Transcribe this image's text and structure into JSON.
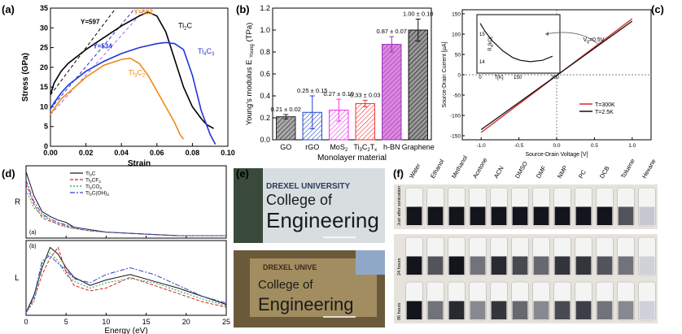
{
  "panel_labels": {
    "a": "(a)",
    "b": "(b)",
    "c": "(c)",
    "d": "(d)",
    "e": "(e)",
    "f": "(f)"
  },
  "chart_data": [
    {
      "id": "a",
      "type": "line",
      "xlabel": "Strain",
      "ylabel": "Stress (GPa)",
      "xlim": [
        0,
        0.1
      ],
      "ylim": [
        0,
        35
      ],
      "xticks": [
        "0.00",
        "0.02",
        "0.04",
        "0.06",
        "0.08",
        "0.10"
      ],
      "yticks": [
        "0",
        "5",
        "10",
        "15",
        "20",
        "25",
        "30",
        "35"
      ],
      "annotations": [
        {
          "text": "Y=597",
          "color": "#000000"
        },
        {
          "text": "Y=502",
          "color": "#ee8a1a"
        },
        {
          "text": "Y=534",
          "color": "#2233dd"
        }
      ],
      "series": [
        {
          "name": "Ti2C",
          "name_main": "Ti",
          "name_sub": "2",
          "name_tail": "C",
          "color": "#000000",
          "x": [
            0,
            0.002,
            0.006,
            0.01,
            0.02,
            0.03,
            0.04,
            0.05,
            0.055,
            0.06,
            0.065,
            0.07,
            0.075,
            0.08,
            0.085,
            0.088,
            0.092
          ],
          "y": [
            13,
            16,
            19,
            21,
            24.5,
            27.5,
            30.5,
            33,
            34,
            33,
            29,
            22,
            15,
            10,
            7,
            5.5,
            4.5
          ]
        },
        {
          "name": "Ti4C3",
          "name_main": "Ti",
          "name_sub": "4",
          "name_tail": "C",
          "name_sub2": "3",
          "color": "#2233dd",
          "x": [
            0,
            0.002,
            0.006,
            0.01,
            0.02,
            0.03,
            0.04,
            0.05,
            0.06,
            0.065,
            0.07,
            0.075,
            0.08,
            0.085,
            0.09,
            0.093
          ],
          "y": [
            9.5,
            11,
            13.5,
            15.5,
            19,
            21.5,
            23.5,
            25,
            26,
            26.3,
            26,
            24.5,
            18,
            9,
            3,
            0.5
          ]
        },
        {
          "name": "Ti3C2",
          "name_main": "Ti",
          "name_sub": "3",
          "name_tail": "C",
          "name_sub2": "2",
          "color": "#ee8a1a",
          "x": [
            0,
            0.002,
            0.006,
            0.01,
            0.02,
            0.03,
            0.04,
            0.045,
            0.05,
            0.055,
            0.06,
            0.065,
            0.07,
            0.073,
            0.075
          ],
          "y": [
            8,
            9.5,
            12,
            13.5,
            17.5,
            20.5,
            22,
            22.3,
            21,
            18,
            14,
            10,
            6,
            3,
            1.8
          ]
        }
      ],
      "linear_fits": [
        {
          "color": "#000000",
          "slope": 597
        },
        {
          "color": "#9a66ff",
          "slope": 502
        },
        {
          "color": "#2233dd",
          "slope": 534
        }
      ]
    },
    {
      "id": "b",
      "type": "bar",
      "title": "",
      "xlabel": "Monolayer material",
      "ylabel": "Young's modulus E",
      "ylabel_sub": "Young",
      "ylabel_unit": "(TPa)",
      "ylim": [
        0,
        1.2
      ],
      "yticks": [
        "0.0",
        "0.2",
        "0.4",
        "0.6",
        "0.8",
        "1.0",
        "1.2"
      ],
      "categories": [
        "GO",
        "rGO",
        "MoS2",
        "Ti3C2Tx",
        "h-BN",
        "Graphene"
      ],
      "category_parts": [
        {
          "main": "GO",
          "sub": "",
          "tail": ""
        },
        {
          "main": "rGO",
          "sub": "",
          "tail": ""
        },
        {
          "main": "MoS",
          "sub": "2",
          "tail": ""
        },
        {
          "main": "Ti",
          "sub": "3",
          "tail": "C",
          "sub2": "2",
          "tail2": "T",
          "sub3": "x"
        },
        {
          "main": "h-BN",
          "sub": "",
          "tail": ""
        },
        {
          "main": "Graphene",
          "sub": "",
          "tail": ""
        }
      ],
      "values": [
        0.21,
        0.25,
        0.27,
        0.33,
        0.87,
        1.0
      ],
      "errors": [
        0.02,
        0.15,
        0.1,
        0.03,
        0.07,
        0.1
      ],
      "labels": [
        "0.21 ± 0.02",
        "0.25 ± 0.15",
        "0.27 ± 0.10",
        "0.33 ± 0.03",
        "0.87 ± 0.07",
        "1.00 ± 0.10"
      ],
      "colors": [
        "#222222",
        "#2244cc",
        "#ee33ee",
        "#ee3333",
        "#9933bb",
        "#111111"
      ],
      "fills": [
        "#aaaaaa",
        "#ffffff",
        "#ffffff",
        "#ffffff",
        "#dd88dd",
        "#999999"
      ]
    },
    {
      "id": "c",
      "type": "line",
      "xlabel": "Source-Drain Voltage [V]",
      "ylabel": "Source-Drain Current [µA]",
      "xlim": [
        -1.25,
        1.25
      ],
      "ylim": [
        -160,
        160
      ],
      "xticks": [
        "-1.0",
        "-0.5",
        "0.0",
        "0.5",
        "1.0"
      ],
      "yticks": [
        "-150",
        "-100",
        "-50",
        "0",
        "50",
        "100",
        "150"
      ],
      "annotation_vg": "V",
      "annotation_vg_sub": "g",
      "annotation_vg_val": "=0.5V",
      "series": [
        {
          "name": "T=300K",
          "color": "#dd2222",
          "x": [
            -1.0,
            1.0
          ],
          "y": [
            -142,
            138
          ]
        },
        {
          "name": "T=2.5K",
          "color": "#111111",
          "x": [
            -1.0,
            1.0
          ],
          "y": [
            -135,
            132
          ]
        }
      ],
      "inset": {
        "ylabel": "R",
        "ylabel_sub": "s",
        "ylabel_unit": "[kΩ]",
        "xlabel": "T[K]",
        "xticks": [
          "0",
          "150",
          "300"
        ],
        "yticks": [
          "14",
          "15"
        ],
        "x": [
          0,
          20,
          50,
          90,
          130,
          160,
          200,
          250,
          290
        ],
        "y": [
          15.4,
          15.1,
          14.75,
          14.4,
          14.15,
          14.05,
          14.0,
          14.05,
          14.2
        ]
      }
    },
    {
      "id": "d",
      "type": "line",
      "xlabel": "Energy (eV)",
      "xticks": [
        "0",
        "5",
        "10",
        "15",
        "20",
        "25"
      ],
      "top": {
        "ylabel": "R",
        "sublabel": "(a)"
      },
      "bottom": {
        "ylabel": "L",
        "sublabel": "(b)"
      },
      "legend_parts": [
        {
          "main": "Ti",
          "sub": "2",
          "tail": "C",
          "sub2": "",
          "tail2": ""
        },
        {
          "main": "Ti",
          "sub": "2",
          "tail": "CF",
          "sub2": "2",
          "tail2": ""
        },
        {
          "main": "Ti",
          "sub": "2",
          "tail": "CO",
          "sub2": "2",
          "tail2": ""
        },
        {
          "main": "Ti",
          "sub": "2",
          "tail": "C(OH)",
          "sub2": "2",
          "tail2": ""
        }
      ],
      "series": [
        {
          "name": "Ti2C",
          "color": "#111111",
          "dash": "",
          "R": [
            0.55,
            0.35,
            0.22,
            0.18,
            0.15,
            0.13,
            0.09,
            0.07,
            0.05,
            0.04,
            0.03,
            0.02,
            0.02,
            0.02
          ],
          "L": [
            0.02,
            0.15,
            0.35,
            0.5,
            0.45,
            0.35,
            0.28,
            0.22,
            0.26,
            0.3,
            0.25,
            0.2,
            0.14,
            0.08
          ]
        },
        {
          "name": "Ti2CF2",
          "color": "#dd2222",
          "dash": "4,2",
          "R": [
            0.45,
            0.28,
            0.17,
            0.14,
            0.12,
            0.1,
            0.08,
            0.06,
            0.05,
            0.04,
            0.03,
            0.02,
            0.02,
            0.02
          ],
          "L": [
            0.02,
            0.12,
            0.3,
            0.42,
            0.5,
            0.32,
            0.22,
            0.18,
            0.2,
            0.28,
            0.22,
            0.16,
            0.1,
            0.06
          ]
        },
        {
          "name": "Ti2CO2",
          "color": "#229955",
          "dash": "2,2",
          "R": [
            0.4,
            0.25,
            0.19,
            0.15,
            0.11,
            0.09,
            0.08,
            0.06,
            0.05,
            0.04,
            0.03,
            0.02,
            0.02,
            0.02
          ],
          "L": [
            0.02,
            0.1,
            0.38,
            0.46,
            0.4,
            0.3,
            0.25,
            0.2,
            0.24,
            0.27,
            0.24,
            0.18,
            0.12,
            0.07
          ]
        },
        {
          "name": "Ti2C(OH)2",
          "color": "#3344cc",
          "dash": "6,2,2,2",
          "R": [
            0.48,
            0.3,
            0.2,
            0.16,
            0.13,
            0.11,
            0.09,
            0.07,
            0.05,
            0.04,
            0.03,
            0.02,
            0.02,
            0.02
          ],
          "L": [
            0.02,
            0.14,
            0.4,
            0.44,
            0.38,
            0.33,
            0.27,
            0.24,
            0.3,
            0.35,
            0.3,
            0.22,
            0.14,
            0.09
          ]
        }
      ],
      "x": [
        0,
        1,
        2,
        3,
        4,
        5,
        6,
        8,
        10,
        13,
        16,
        19,
        22,
        25
      ]
    }
  ],
  "panel_e": {
    "top_header": "DREXEL UNIVERSITY",
    "top_line1": "College of",
    "top_line2": "Engineering",
    "bottom_header": "DREXEL UNIVE",
    "bottom_line1": "College of",
    "bottom_line2": "Engineering"
  },
  "panel_f": {
    "solvents": [
      "Water",
      "Ethanol",
      "Methanol",
      "Acetone",
      "ACN",
      "DMSO",
      "DMF",
      "NMP",
      "PC",
      "DCB",
      "Toluene",
      "Hexane"
    ],
    "rows": [
      {
        "label": "Just after sonication",
        "dark": [
          1,
          1,
          1,
          1,
          1,
          1,
          1,
          1,
          1,
          1,
          0.7,
          0.15
        ]
      },
      {
        "label": "24 hours",
        "dark": [
          1,
          0.7,
          1,
          0.55,
          0.9,
          0.75,
          0.6,
          0.85,
          0.85,
          0.7,
          0.55,
          0.1
        ]
      },
      {
        "label": "96 hours",
        "dark": [
          1,
          0.55,
          0.9,
          0.45,
          0.85,
          0.6,
          0.45,
          0.75,
          0.8,
          0.55,
          0.45,
          0.1
        ]
      }
    ]
  }
}
